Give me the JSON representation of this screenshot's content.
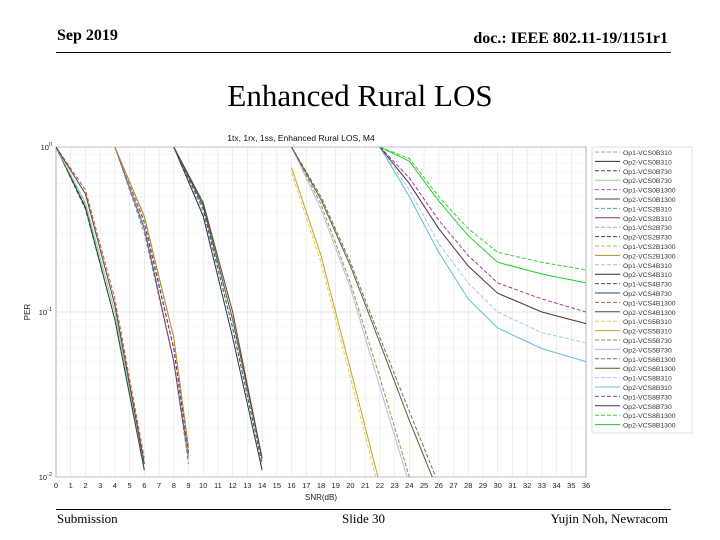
{
  "header": {
    "date": "Sep 2019",
    "doc": "doc.: IEEE 802.11-19/1151r1"
  },
  "slide_title": "Enhanced Rural LOS",
  "footer": {
    "left": "Submission",
    "center": "Slide 30",
    "right": "Yujin Noh, Newracom"
  },
  "chart_data": {
    "type": "line",
    "title": "1tx, 1rx, 1ss, Enhanced Rural LOS, M4",
    "xlabel": "SNR(dB)",
    "ylabel": "PER",
    "xlim": [
      0,
      36
    ],
    "ylim": [
      0.01,
      1
    ],
    "yscale": "log",
    "xticks": [
      0,
      1,
      2,
      3,
      4,
      5,
      6,
      7,
      8,
      9,
      10,
      11,
      12,
      13,
      14,
      15,
      16,
      17,
      18,
      19,
      20,
      21,
      22,
      23,
      24,
      25,
      26,
      27,
      28,
      29,
      30,
      31,
      32,
      33,
      34,
      35,
      36
    ],
    "yticks": [
      {
        "value": 1,
        "label": "10^0"
      },
      {
        "value": 0.1,
        "label": "10^-1"
      },
      {
        "value": 0.01,
        "label": "10^-2"
      }
    ],
    "grid": true,
    "legend_position": "right",
    "series": [
      {
        "name": "Op1-VCS0B310",
        "color": "#9aa0b8",
        "dash": "dash",
        "x": [
          0,
          2,
          4,
          6
        ],
        "y": [
          1,
          0.45,
          0.1,
          0.012
        ]
      },
      {
        "name": "Op2-VCS0B310",
        "color": "#1e2b4a",
        "dash": "solid",
        "x": [
          0,
          2,
          4,
          6
        ],
        "y": [
          1,
          0.43,
          0.09,
          0.011
        ]
      },
      {
        "name": "Op1-VCS0B730",
        "color": "#2a5a3a",
        "dash": "dash",
        "x": [
          0,
          2,
          4,
          6
        ],
        "y": [
          1,
          0.42,
          0.09,
          0.011
        ]
      },
      {
        "name": "Op2-VCS0B730",
        "color": "#8fd4a0",
        "dash": "solid",
        "x": [
          0,
          2,
          4,
          6
        ],
        "y": [
          1,
          0.46,
          0.1,
          0.012
        ]
      },
      {
        "name": "Op1-VCS0B1300",
        "color": "#b06060",
        "dash": "dash",
        "x": [
          0,
          2,
          4,
          6
        ],
        "y": [
          1,
          0.55,
          0.12,
          0.013
        ]
      },
      {
        "name": "Op2-VCS0B1300",
        "color": "#6a3a30",
        "dash": "solid",
        "x": [
          0,
          2,
          4,
          6
        ],
        "y": [
          1,
          0.52,
          0.11,
          0.012
        ]
      },
      {
        "name": "Op1-VCS2B310",
        "color": "#40b0a0",
        "dash": "dash",
        "x": [
          4,
          6,
          8,
          9
        ],
        "y": [
          1,
          0.3,
          0.05,
          0.012
        ]
      },
      {
        "name": "Op2-VCS2B310",
        "color": "#7a3a6a",
        "dash": "solid",
        "x": [
          4,
          6,
          8,
          9
        ],
        "y": [
          1,
          0.32,
          0.05,
          0.013
        ]
      },
      {
        "name": "Op1-VCS2B730",
        "color": "#d090c0",
        "dash": "dash",
        "x": [
          4,
          6,
          8,
          9
        ],
        "y": [
          1,
          0.33,
          0.06,
          0.013
        ]
      },
      {
        "name": "Op2-VCS2B730",
        "color": "#503070",
        "dash": "dash",
        "x": [
          4,
          6,
          8,
          9
        ],
        "y": [
          1,
          0.35,
          0.06,
          0.014
        ]
      },
      {
        "name": "Op1-VCS2B1300",
        "color": "#c0b060",
        "dash": "dash",
        "x": [
          4,
          6,
          8,
          9
        ],
        "y": [
          1,
          0.36,
          0.07,
          0.015
        ]
      },
      {
        "name": "Op2-VCS2B1300",
        "color": "#b08830",
        "dash": "solid",
        "x": [
          4,
          6,
          8,
          9
        ],
        "y": [
          1,
          0.38,
          0.07,
          0.015
        ]
      },
      {
        "name": "Op1-VCS4B310",
        "color": "#b0b8d0",
        "dash": "dash",
        "x": [
          8,
          10,
          12,
          14
        ],
        "y": [
          1,
          0.4,
          0.08,
          0.012
        ]
      },
      {
        "name": "Op2-VCS4B310",
        "color": "#203050",
        "dash": "solid",
        "x": [
          8,
          10,
          12,
          14
        ],
        "y": [
          1,
          0.38,
          0.07,
          0.011
        ]
      },
      {
        "name": "Op1-VCS4B730",
        "color": "#306040",
        "dash": "dash",
        "x": [
          8,
          10,
          12,
          14
        ],
        "y": [
          1,
          0.42,
          0.08,
          0.012
        ]
      },
      {
        "name": "Op2-VCS4B730",
        "color": "#205040",
        "dash": "solid",
        "x": [
          8,
          10,
          12,
          14
        ],
        "y": [
          1,
          0.44,
          0.09,
          0.013
        ]
      },
      {
        "name": "Op1-VCS4B1300",
        "color": "#a06050",
        "dash": "dash",
        "x": [
          8,
          10,
          12,
          14
        ],
        "y": [
          1,
          0.45,
          0.09,
          0.013
        ]
      },
      {
        "name": "Op2-VCS4B1300",
        "color": "#604030",
        "dash": "solid",
        "x": [
          8,
          10,
          12,
          14
        ],
        "y": [
          1,
          0.46,
          0.1,
          0.013
        ]
      },
      {
        "name": "Op1-VCS5B310",
        "color": "#e8d040",
        "dash": "dash",
        "x": [
          16,
          18,
          20,
          22
        ],
        "y": [
          0.7,
          0.2,
          0.04,
          0.008
        ]
      },
      {
        "name": "Op2-VCS5B310",
        "color": "#c8a030",
        "dash": "solid",
        "x": [
          16,
          18,
          20,
          22
        ],
        "y": [
          0.75,
          0.22,
          0.045,
          0.009
        ]
      },
      {
        "name": "Op1-VCS5B730",
        "color": "#8a9a3a",
        "dash": "dash",
        "x": [
          16,
          18,
          20,
          22,
          24
        ],
        "y": [
          1,
          0.45,
          0.15,
          0.04,
          0.01
        ]
      },
      {
        "name": "Op2-VCS5B730",
        "color": "#c0b8e0",
        "dash": "solid",
        "x": [
          16,
          18,
          20,
          22,
          24
        ],
        "y": [
          1,
          0.42,
          0.14,
          0.035,
          0.009
        ]
      },
      {
        "name": "Op1-VCS6B1300",
        "color": "#707070",
        "dash": "dash",
        "x": [
          16,
          18,
          20,
          22,
          24,
          26
        ],
        "y": [
          1,
          0.5,
          0.2,
          0.07,
          0.025,
          0.009
        ]
      },
      {
        "name": "Op2-VCS6B1300",
        "color": "#506030",
        "dash": "solid",
        "x": [
          16,
          18,
          20,
          22,
          24,
          26
        ],
        "y": [
          1,
          0.48,
          0.19,
          0.065,
          0.022,
          0.008
        ]
      },
      {
        "name": "Op1-VCS8B310",
        "color": "#a8c8e8",
        "dash": "dash",
        "x": [
          22,
          24,
          26,
          28,
          30,
          33,
          36
        ],
        "y": [
          1,
          0.55,
          0.26,
          0.15,
          0.1,
          0.075,
          0.065
        ]
      },
      {
        "name": "Op2-VCS8B310",
        "color": "#60c0d8",
        "dash": "solid",
        "x": [
          22,
          24,
          26,
          28,
          30,
          33,
          36
        ],
        "y": [
          1,
          0.5,
          0.23,
          0.12,
          0.08,
          0.06,
          0.05
        ]
      },
      {
        "name": "Op1-VCS8B730",
        "color": "#a04090",
        "dash": "dash",
        "x": [
          22,
          24,
          26,
          28,
          30,
          33,
          36
        ],
        "y": [
          1,
          0.65,
          0.36,
          0.22,
          0.15,
          0.12,
          0.1
        ]
      },
      {
        "name": "Op2-VCS8B730",
        "color": "#503040",
        "dash": "solid",
        "x": [
          22,
          24,
          26,
          28,
          30,
          33,
          36
        ],
        "y": [
          1,
          0.6,
          0.32,
          0.19,
          0.13,
          0.1,
          0.085
        ]
      },
      {
        "name": "Op1-VCS8B1300",
        "color": "#40c840",
        "dash": "dash",
        "x": [
          22,
          24,
          26,
          28,
          30,
          33,
          36
        ],
        "y": [
          1,
          0.85,
          0.5,
          0.32,
          0.23,
          0.2,
          0.18
        ]
      },
      {
        "name": "Op2-VCS8B1300",
        "color": "#20d020",
        "dash": "solid",
        "x": [
          22,
          24,
          26,
          28,
          30,
          33,
          36
        ],
        "y": [
          1,
          0.82,
          0.47,
          0.29,
          0.2,
          0.17,
          0.15
        ]
      }
    ]
  }
}
